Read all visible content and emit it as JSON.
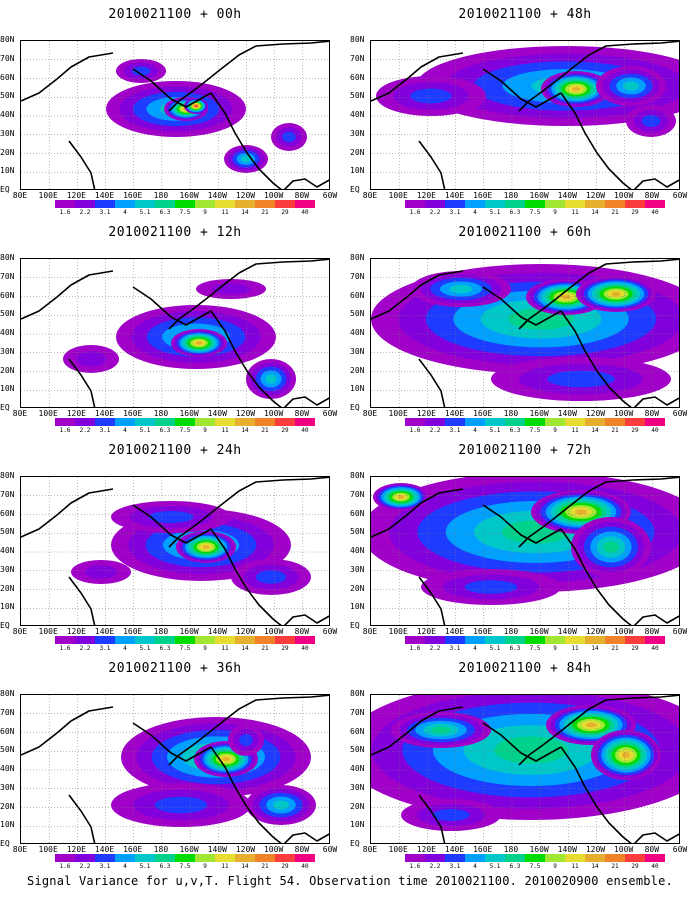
{
  "panels": [
    {
      "title": "2010021100 + 00h",
      "level": 0
    },
    {
      "title": "2010021100 + 48h",
      "level": 4
    },
    {
      "title": "2010021100 + 12h",
      "level": 1
    },
    {
      "title": "2010021100 + 60h",
      "level": 5
    },
    {
      "title": "2010021100 + 24h",
      "level": 2
    },
    {
      "title": "2010021100 + 72h",
      "level": 6
    },
    {
      "title": "2010021100 + 36h",
      "level": 3
    },
    {
      "title": "2010021100 + 84h",
      "level": 7
    }
  ],
  "lon_labels": [
    "80E",
    "100E",
    "120E",
    "140E",
    "160E",
    "180",
    "160W",
    "140W",
    "120W",
    "100W",
    "80W",
    "60W"
  ],
  "lat_labels": [
    "80N",
    "70N",
    "60N",
    "50N",
    "40N",
    "30N",
    "20N",
    "10N",
    "EQ"
  ],
  "colorbar": {
    "labels": [
      "1.6",
      "2.2",
      "3.1",
      "4",
      "5.1",
      "6.3",
      "7.5",
      "9",
      "11",
      "14",
      "21",
      "29",
      "40"
    ],
    "colors": [
      "#a000c8",
      "#8200dc",
      "#1e3cff",
      "#00a0ff",
      "#00c8c8",
      "#00d28c",
      "#00dc00",
      "#a0e632",
      "#e6dc32",
      "#e6af2d",
      "#f08228",
      "#fa3c3c",
      "#f00082"
    ]
  },
  "caption": "Signal Variance for u,v,T. Flight 54. Observation time 2010021100. 2010020900 ensemble.",
  "chart_data": [
    {
      "type": "heatmap",
      "title": "2010021100 + 00h",
      "x_range": [
        "80E",
        "60W"
      ],
      "y_range": [
        "EQ",
        "80N"
      ],
      "levels": [
        1.6,
        2.2,
        3.1,
        4,
        5.1,
        6.3,
        7.5,
        9,
        11,
        14,
        21,
        29,
        40
      ]
    },
    {
      "type": "heatmap",
      "title": "2010021100 + 12h",
      "x_range": [
        "80E",
        "60W"
      ],
      "y_range": [
        "EQ",
        "80N"
      ],
      "levels": [
        1.6,
        2.2,
        3.1,
        4,
        5.1,
        6.3,
        7.5,
        9,
        11,
        14,
        21,
        29,
        40
      ]
    },
    {
      "type": "heatmap",
      "title": "2010021100 + 24h",
      "x_range": [
        "80E",
        "60W"
      ],
      "y_range": [
        "EQ",
        "80N"
      ],
      "levels": [
        1.6,
        2.2,
        3.1,
        4,
        5.1,
        6.3,
        7.5,
        9,
        11,
        14,
        21,
        29,
        40
      ]
    },
    {
      "type": "heatmap",
      "title": "2010021100 + 36h",
      "x_range": [
        "80E",
        "60W"
      ],
      "y_range": [
        "EQ",
        "80N"
      ],
      "levels": [
        1.6,
        2.2,
        3.1,
        4,
        5.1,
        6.3,
        7.5,
        9,
        11,
        14,
        21,
        29,
        40
      ]
    },
    {
      "type": "heatmap",
      "title": "2010021100 + 48h",
      "x_range": [
        "80E",
        "60W"
      ],
      "y_range": [
        "EQ",
        "80N"
      ],
      "levels": [
        1.6,
        2.2,
        3.1,
        4,
        5.1,
        6.3,
        7.5,
        9,
        11,
        14,
        21,
        29,
        40
      ]
    },
    {
      "type": "heatmap",
      "title": "2010021100 + 60h",
      "x_range": [
        "80E",
        "60W"
      ],
      "y_range": [
        "EQ",
        "80N"
      ],
      "levels": [
        1.6,
        2.2,
        3.1,
        4,
        5.1,
        6.3,
        7.5,
        9,
        11,
        14,
        21,
        29,
        40
      ]
    },
    {
      "type": "heatmap",
      "title": "2010021100 + 72h",
      "x_range": [
        "80E",
        "60W"
      ],
      "y_range": [
        "EQ",
        "80N"
      ],
      "levels": [
        1.6,
        2.2,
        3.1,
        4,
        5.1,
        6.3,
        7.5,
        9,
        11,
        14,
        21,
        29,
        40
      ]
    },
    {
      "type": "heatmap",
      "title": "2010021100 + 84h",
      "x_range": [
        "80E",
        "60W"
      ],
      "y_range": [
        "EQ",
        "80N"
      ],
      "levels": [
        1.6,
        2.2,
        3.1,
        4,
        5.1,
        6.3,
        7.5,
        9,
        11,
        14,
        21,
        29,
        40
      ]
    }
  ]
}
